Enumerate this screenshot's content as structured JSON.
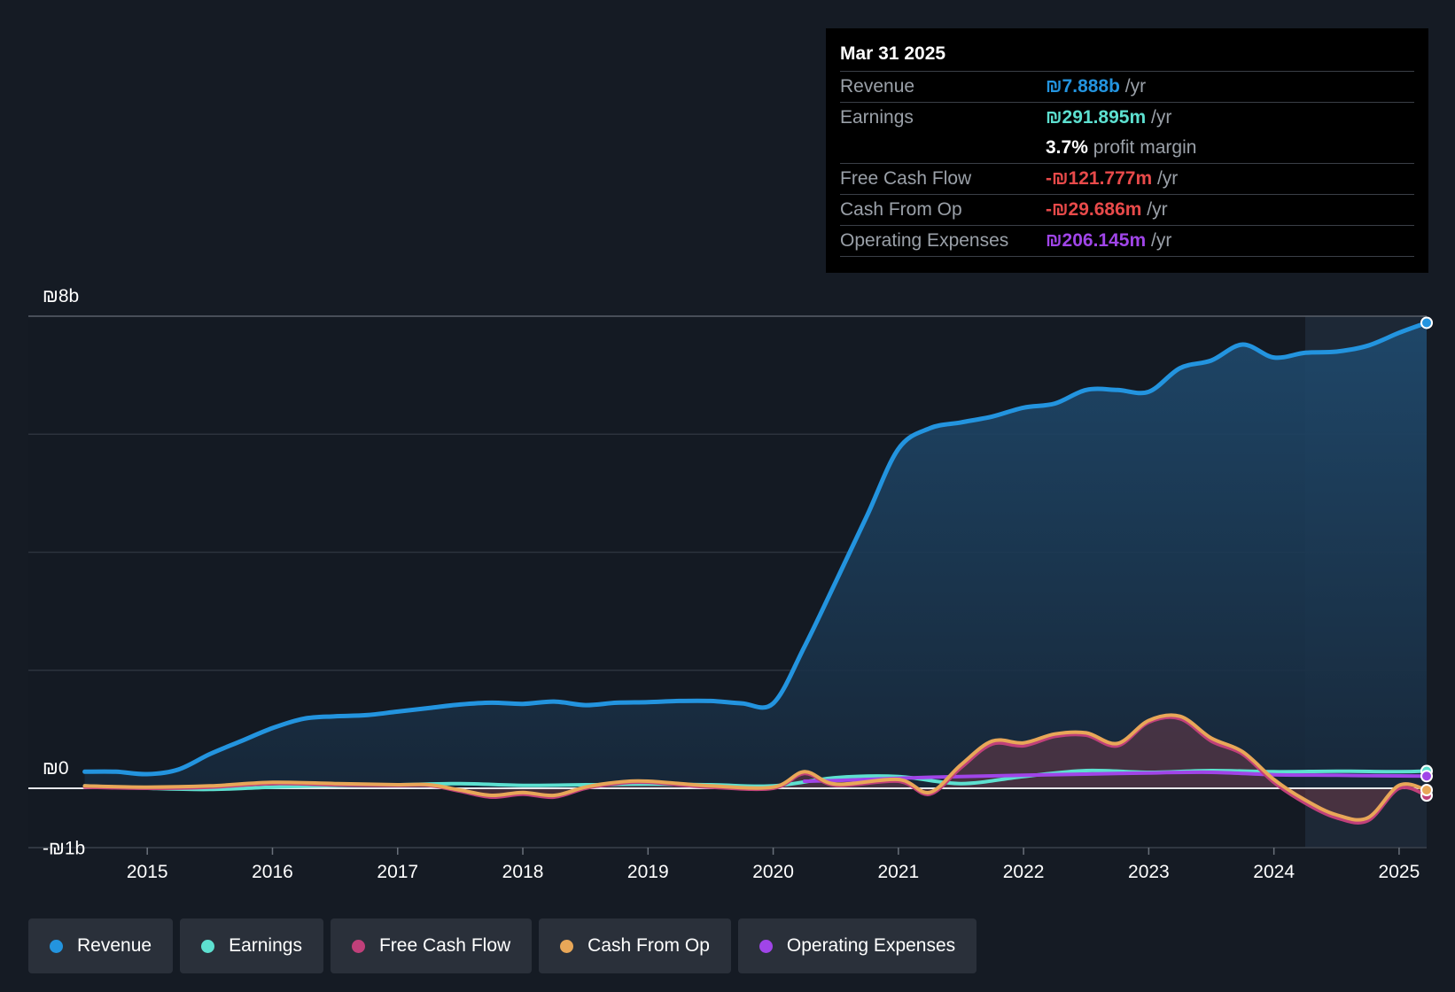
{
  "chart_data": {
    "type": "line",
    "currency_symbol": "₪",
    "y_labels": [
      "₪8b",
      "₪0",
      "-₪1b"
    ],
    "ylim": [
      -1,
      8
    ],
    "x_ticks": [
      "2015",
      "2016",
      "2017",
      "2018",
      "2019",
      "2020",
      "2021",
      "2022",
      "2023",
      "2024",
      "2025"
    ],
    "x_tick_values": [
      2015,
      2016,
      2017,
      2018,
      2019,
      2020,
      2021,
      2022,
      2023,
      2024,
      2025
    ],
    "xlim": [
      2014.05,
      2025.22
    ],
    "forecast_shade_start": 2024.25,
    "series": [
      {
        "name": "Revenue",
        "color": "#2394df",
        "x": [
          2014.5,
          2014.75,
          2015.0,
          2015.25,
          2015.5,
          2015.75,
          2016.0,
          2016.25,
          2016.5,
          2016.75,
          2017.0,
          2017.25,
          2017.5,
          2017.75,
          2018.0,
          2018.25,
          2018.5,
          2018.75,
          2019.0,
          2019.25,
          2019.5,
          2019.75,
          2020.0,
          2020.25,
          2020.5,
          2020.75,
          2021.0,
          2021.25,
          2021.5,
          2021.75,
          2022.0,
          2022.25,
          2022.5,
          2022.75,
          2023.0,
          2023.25,
          2023.5,
          2023.75,
          2024.0,
          2024.25,
          2024.5,
          2024.75,
          2025.0,
          2025.22
        ],
        "values": [
          0.28,
          0.28,
          0.24,
          0.32,
          0.58,
          0.8,
          1.02,
          1.18,
          1.22,
          1.24,
          1.3,
          1.36,
          1.42,
          1.45,
          1.43,
          1.47,
          1.41,
          1.45,
          1.46,
          1.48,
          1.48,
          1.44,
          1.44,
          2.4,
          3.5,
          4.62,
          5.75,
          6.1,
          6.2,
          6.3,
          6.45,
          6.52,
          6.75,
          6.75,
          6.72,
          7.12,
          7.25,
          7.52,
          7.3,
          7.38,
          7.4,
          7.5,
          7.72,
          7.888
        ]
      },
      {
        "name": "Earnings",
        "color": "#5de0d0",
        "x": [
          2014.5,
          2015.0,
          2015.5,
          2016.0,
          2016.5,
          2017.0,
          2017.5,
          2018.0,
          2018.5,
          2019.0,
          2019.5,
          2020.0,
          2020.5,
          2021.0,
          2021.5,
          2022.0,
          2022.5,
          2023.0,
          2023.5,
          2024.0,
          2024.5,
          2025.0,
          2025.22
        ],
        "values": [
          0.04,
          0.0,
          -0.02,
          0.02,
          0.05,
          0.06,
          0.08,
          0.05,
          0.06,
          0.07,
          0.06,
          0.04,
          0.18,
          0.2,
          0.08,
          0.2,
          0.3,
          0.27,
          0.3,
          0.28,
          0.29,
          0.28,
          0.292
        ]
      },
      {
        "name": "Free Cash Flow",
        "color": "#c0407a",
        "x": [
          2014.5,
          2015.0,
          2015.5,
          2016.0,
          2016.5,
          2017.0,
          2017.25,
          2017.5,
          2017.75,
          2018.0,
          2018.25,
          2018.5,
          2018.75,
          2019.0,
          2019.5,
          2020.0,
          2020.25,
          2020.5,
          2021.0,
          2021.25,
          2021.5,
          2021.75,
          2022.0,
          2022.25,
          2022.5,
          2022.75,
          2023.0,
          2023.25,
          2023.5,
          2023.75,
          2024.0,
          2024.25,
          2024.5,
          2024.75,
          2025.0,
          2025.22
        ],
        "values": [
          0.02,
          0.0,
          0.02,
          0.08,
          0.06,
          0.05,
          0.05,
          -0.05,
          -0.15,
          -0.1,
          -0.15,
          0.0,
          0.08,
          0.1,
          0.02,
          0.0,
          0.25,
          0.05,
          0.12,
          -0.1,
          0.35,
          0.75,
          0.72,
          0.88,
          0.9,
          0.72,
          1.12,
          1.18,
          0.8,
          0.58,
          0.1,
          -0.25,
          -0.5,
          -0.55,
          0.0,
          -0.122
        ]
      },
      {
        "name": "Cash From Op",
        "color": "#e8a758",
        "x": [
          2014.5,
          2015.0,
          2015.5,
          2016.0,
          2016.5,
          2017.0,
          2017.25,
          2017.5,
          2017.75,
          2018.0,
          2018.25,
          2018.5,
          2018.75,
          2019.0,
          2019.5,
          2020.0,
          2020.25,
          2020.5,
          2021.0,
          2021.25,
          2021.5,
          2021.75,
          2022.0,
          2022.25,
          2022.5,
          2022.75,
          2023.0,
          2023.25,
          2023.5,
          2023.75,
          2024.0,
          2024.25,
          2024.5,
          2024.75,
          2025.0,
          2025.22
        ],
        "values": [
          0.04,
          0.02,
          0.04,
          0.1,
          0.08,
          0.06,
          0.06,
          -0.03,
          -0.12,
          -0.07,
          -0.12,
          0.02,
          0.1,
          0.12,
          0.04,
          0.02,
          0.28,
          0.07,
          0.15,
          -0.07,
          0.4,
          0.8,
          0.77,
          0.92,
          0.94,
          0.76,
          1.15,
          1.22,
          0.85,
          0.62,
          0.15,
          -0.2,
          -0.45,
          -0.5,
          0.05,
          -0.03
        ]
      },
      {
        "name": "Operating Expenses",
        "color": "#a045e8",
        "x": [
          2020.25,
          2020.5,
          2021.0,
          2021.5,
          2022.0,
          2022.5,
          2023.0,
          2023.5,
          2024.0,
          2024.5,
          2025.0,
          2025.22
        ],
        "values": [
          0.12,
          0.13,
          0.17,
          0.2,
          0.22,
          0.24,
          0.26,
          0.27,
          0.23,
          0.22,
          0.21,
          0.206
        ]
      }
    ]
  },
  "tooltip": {
    "date": "Mar 31 2025",
    "rows": [
      {
        "label": "Revenue",
        "value": "₪7.888b",
        "unit": " /yr",
        "color": "#2394df"
      },
      {
        "label": "Earnings",
        "value": "₪291.895m",
        "unit": " /yr",
        "color": "#5de0d0"
      },
      {
        "label": "",
        "value": "3.7%",
        "unit": " profit margin",
        "color": "#ffffff"
      },
      {
        "label": "Free Cash Flow",
        "value": "-₪121.777m",
        "unit": " /yr",
        "color": "#e84a4a"
      },
      {
        "label": "Cash From Op",
        "value": "-₪29.686m",
        "unit": " /yr",
        "color": "#e84a4a"
      },
      {
        "label": "Operating Expenses",
        "value": "₪206.145m",
        "unit": " /yr",
        "color": "#a045e8"
      }
    ]
  },
  "legend": [
    {
      "label": "Revenue",
      "color": "#2394df"
    },
    {
      "label": "Earnings",
      "color": "#5de0d0"
    },
    {
      "label": "Free Cash Flow",
      "color": "#c0407a"
    },
    {
      "label": "Cash From Op",
      "color": "#e8a758"
    },
    {
      "label": "Operating Expenses",
      "color": "#a045e8"
    }
  ]
}
